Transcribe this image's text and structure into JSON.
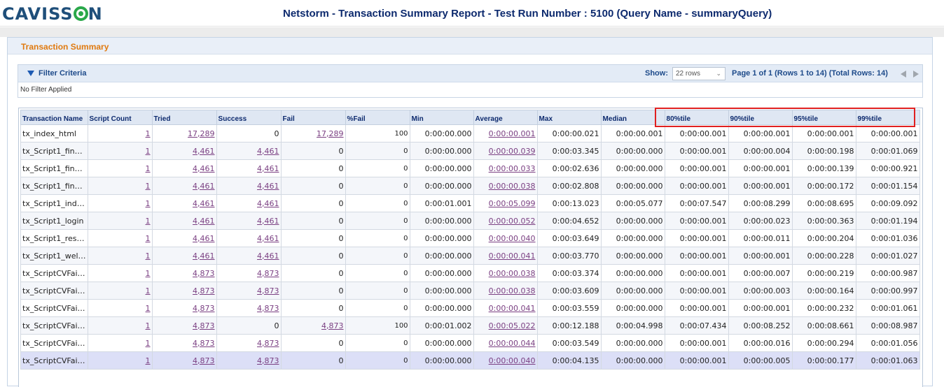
{
  "header": {
    "logo_pre": "CAVISS",
    "logo_post": "N",
    "title": "Netstorm - Transaction Summary Report - Test Run Number : 5100 (Query Name - summaryQuery)"
  },
  "panel": {
    "title": "Transaction Summary"
  },
  "filter": {
    "title": "Filter Criteria",
    "show_label": "Show:",
    "rows_value": "22 rows",
    "page_info": "Page 1 of 1 (Rows 1 to 14) (Total Rows: 14)",
    "body_text": "No Filter Applied"
  },
  "table": {
    "columns": [
      "Transaction Name",
      "Script Count",
      "Tried",
      "Success",
      "Fail",
      "%Fail",
      "Min",
      "Average",
      "Max",
      "Median",
      "80%tile",
      "90%tile",
      "95%tile",
      "99%tile"
    ],
    "rows": [
      [
        "tx_index_html",
        "1",
        "17,289",
        "0",
        "17,289",
        "100",
        "0:00:00.000",
        "0:00:00.001",
        "0:00:00.021",
        "0:00:00.001",
        "0:00:00.001",
        "0:00:00.001",
        "0:00:00.001",
        "0:00:00.001"
      ],
      [
        "tx_Script1_fin…",
        "1",
        "4,461",
        "4,461",
        "0",
        "0",
        "0:00:00.000",
        "0:00:00.039",
        "0:00:03.345",
        "0:00:00.000",
        "0:00:00.001",
        "0:00:00.004",
        "0:00:00.198",
        "0:00:01.069"
      ],
      [
        "tx_Script1_fin…",
        "1",
        "4,461",
        "4,461",
        "0",
        "0",
        "0:00:00.000",
        "0:00:00.033",
        "0:00:02.636",
        "0:00:00.000",
        "0:00:00.001",
        "0:00:00.001",
        "0:00:00.139",
        "0:00:00.921"
      ],
      [
        "tx_Script1_fin…",
        "1",
        "4,461",
        "4,461",
        "0",
        "0",
        "0:00:00.000",
        "0:00:00.038",
        "0:00:02.808",
        "0:00:00.000",
        "0:00:00.001",
        "0:00:00.001",
        "0:00:00.172",
        "0:00:01.154"
      ],
      [
        "tx_Script1_ind…",
        "1",
        "4,461",
        "4,461",
        "0",
        "0",
        "0:00:01.001",
        "0:00:05.099",
        "0:00:13.023",
        "0:00:05.077",
        "0:00:07.547",
        "0:00:08.299",
        "0:00:08.695",
        "0:00:09.092"
      ],
      [
        "tx_Script1_login",
        "1",
        "4,461",
        "4,461",
        "0",
        "0",
        "0:00:00.000",
        "0:00:00.052",
        "0:00:04.652",
        "0:00:00.000",
        "0:00:00.001",
        "0:00:00.023",
        "0:00:00.363",
        "0:00:01.194"
      ],
      [
        "tx_Script1_res…",
        "1",
        "4,461",
        "4,461",
        "0",
        "0",
        "0:00:00.000",
        "0:00:00.040",
        "0:00:03.649",
        "0:00:00.000",
        "0:00:00.001",
        "0:00:00.011",
        "0:00:00.204",
        "0:00:01.036"
      ],
      [
        "tx_Script1_wel…",
        "1",
        "4,461",
        "4,461",
        "0",
        "0",
        "0:00:00.000",
        "0:00:00.041",
        "0:00:03.770",
        "0:00:00.000",
        "0:00:00.001",
        "0:00:00.001",
        "0:00:00.228",
        "0:00:01.027"
      ],
      [
        "tx_ScriptCVFai…",
        "1",
        "4,873",
        "4,873",
        "0",
        "0",
        "0:00:00.000",
        "0:00:00.038",
        "0:00:03.374",
        "0:00:00.000",
        "0:00:00.001",
        "0:00:00.007",
        "0:00:00.219",
        "0:00:00.987"
      ],
      [
        "tx_ScriptCVFai…",
        "1",
        "4,873",
        "4,873",
        "0",
        "0",
        "0:00:00.000",
        "0:00:00.038",
        "0:00:03.609",
        "0:00:00.000",
        "0:00:00.001",
        "0:00:00.003",
        "0:00:00.164",
        "0:00:00.997"
      ],
      [
        "tx_ScriptCVFai…",
        "1",
        "4,873",
        "4,873",
        "0",
        "0",
        "0:00:00.000",
        "0:00:00.041",
        "0:00:03.559",
        "0:00:00.000",
        "0:00:00.001",
        "0:00:00.001",
        "0:00:00.232",
        "0:00:01.061"
      ],
      [
        "tx_ScriptCVFai…",
        "1",
        "4,873",
        "0",
        "4,873",
        "100",
        "0:00:01.002",
        "0:00:05.022",
        "0:00:12.188",
        "0:00:04.998",
        "0:00:07.434",
        "0:00:08.252",
        "0:00:08.661",
        "0:00:08.987"
      ],
      [
        "tx_ScriptCVFai…",
        "1",
        "4,873",
        "4,873",
        "0",
        "0",
        "0:00:00.000",
        "0:00:00.044",
        "0:00:03.549",
        "0:00:00.000",
        "0:00:00.001",
        "0:00:00.016",
        "0:00:00.294",
        "0:00:01.056"
      ],
      [
        "tx_ScriptCVFai…",
        "1",
        "4,873",
        "4,873",
        "0",
        "0",
        "0:00:00.000",
        "0:00:00.040",
        "0:00:04.135",
        "0:00:00.000",
        "0:00:00.001",
        "0:00:00.005",
        "0:00:00.177",
        "0:00:01.063"
      ]
    ],
    "selected_row": 13
  }
}
